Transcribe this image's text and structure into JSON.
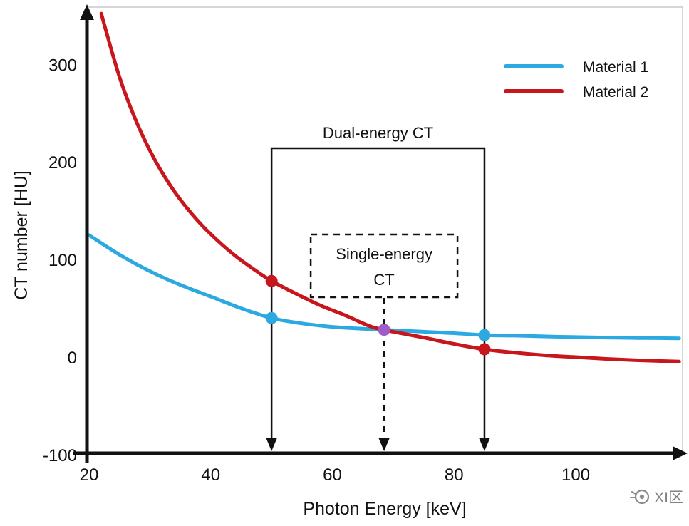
{
  "watermark": {
    "text": "XI区"
  },
  "chart_data": {
    "type": "line",
    "title": "",
    "xlabel": "Photon Energy [keV]",
    "ylabel": "CT number [HU]",
    "xlim": [
      20,
      117
    ],
    "ylim": [
      -100,
      355
    ],
    "x_ticks": [
      20,
      40,
      60,
      80,
      100
    ],
    "y_ticks": [
      -100,
      0,
      100,
      200,
      300
    ],
    "grid": false,
    "legend_position": "top-right",
    "series": [
      {
        "name": "Material 1",
        "color": "#2CA9E1",
        "points": [
          [
            20,
            125
          ],
          [
            25,
            105
          ],
          [
            30,
            88
          ],
          [
            35,
            74
          ],
          [
            40,
            62
          ],
          [
            45,
            50
          ],
          [
            50,
            40
          ],
          [
            55,
            34.5
          ],
          [
            60,
            31
          ],
          [
            65,
            29
          ],
          [
            70,
            27.5
          ],
          [
            75,
            26
          ],
          [
            80,
            24.5
          ],
          [
            85,
            22.5
          ],
          [
            90,
            22
          ],
          [
            95,
            21.2
          ],
          [
            100,
            20.5
          ],
          [
            105,
            20
          ],
          [
            110,
            19.6
          ],
          [
            114,
            19.4
          ],
          [
            117,
            19.2
          ]
        ]
      },
      {
        "name": "Material 2",
        "color": "#C8161D",
        "points": [
          [
            22,
            352
          ],
          [
            25,
            287
          ],
          [
            28,
            238
          ],
          [
            31,
            200
          ],
          [
            34,
            170
          ],
          [
            37,
            146
          ],
          [
            40,
            126
          ],
          [
            44,
            104
          ],
          [
            48,
            86
          ],
          [
            50,
            78
          ],
          [
            54,
            65
          ],
          [
            58,
            53
          ],
          [
            62,
            43
          ],
          [
            66,
            32
          ],
          [
            68,
            28.5
          ],
          [
            70,
            26
          ],
          [
            75,
            20
          ],
          [
            80,
            13.5
          ],
          [
            85,
            8
          ],
          [
            90,
            4.5
          ],
          [
            95,
            1.8
          ],
          [
            100,
            0
          ],
          [
            105,
            -1.8
          ],
          [
            110,
            -3.2
          ],
          [
            114,
            -4
          ],
          [
            117,
            -4.6
          ]
        ]
      }
    ],
    "markers": [
      {
        "x": 50,
        "y": 78,
        "color": "#C8161D"
      },
      {
        "x": 50,
        "y": 40,
        "color": "#2CA9E1"
      },
      {
        "x": 68.5,
        "y": 28,
        "color": "#A05BC8"
      },
      {
        "x": 85,
        "y": 22.5,
        "color": "#2CA9E1"
      },
      {
        "x": 85,
        "y": 8,
        "color": "#C8161D"
      }
    ],
    "annotations": {
      "dual_energy": {
        "label": "Dual-energy CT",
        "x_start": 50,
        "x_end": 85,
        "style": "solid-bracket-with-down-arrows"
      },
      "single_energy": {
        "label_lines": [
          "Single-energy",
          "CT"
        ],
        "x": 68.5,
        "style": "dashed-box-with-dashed-down-arrow"
      }
    }
  }
}
